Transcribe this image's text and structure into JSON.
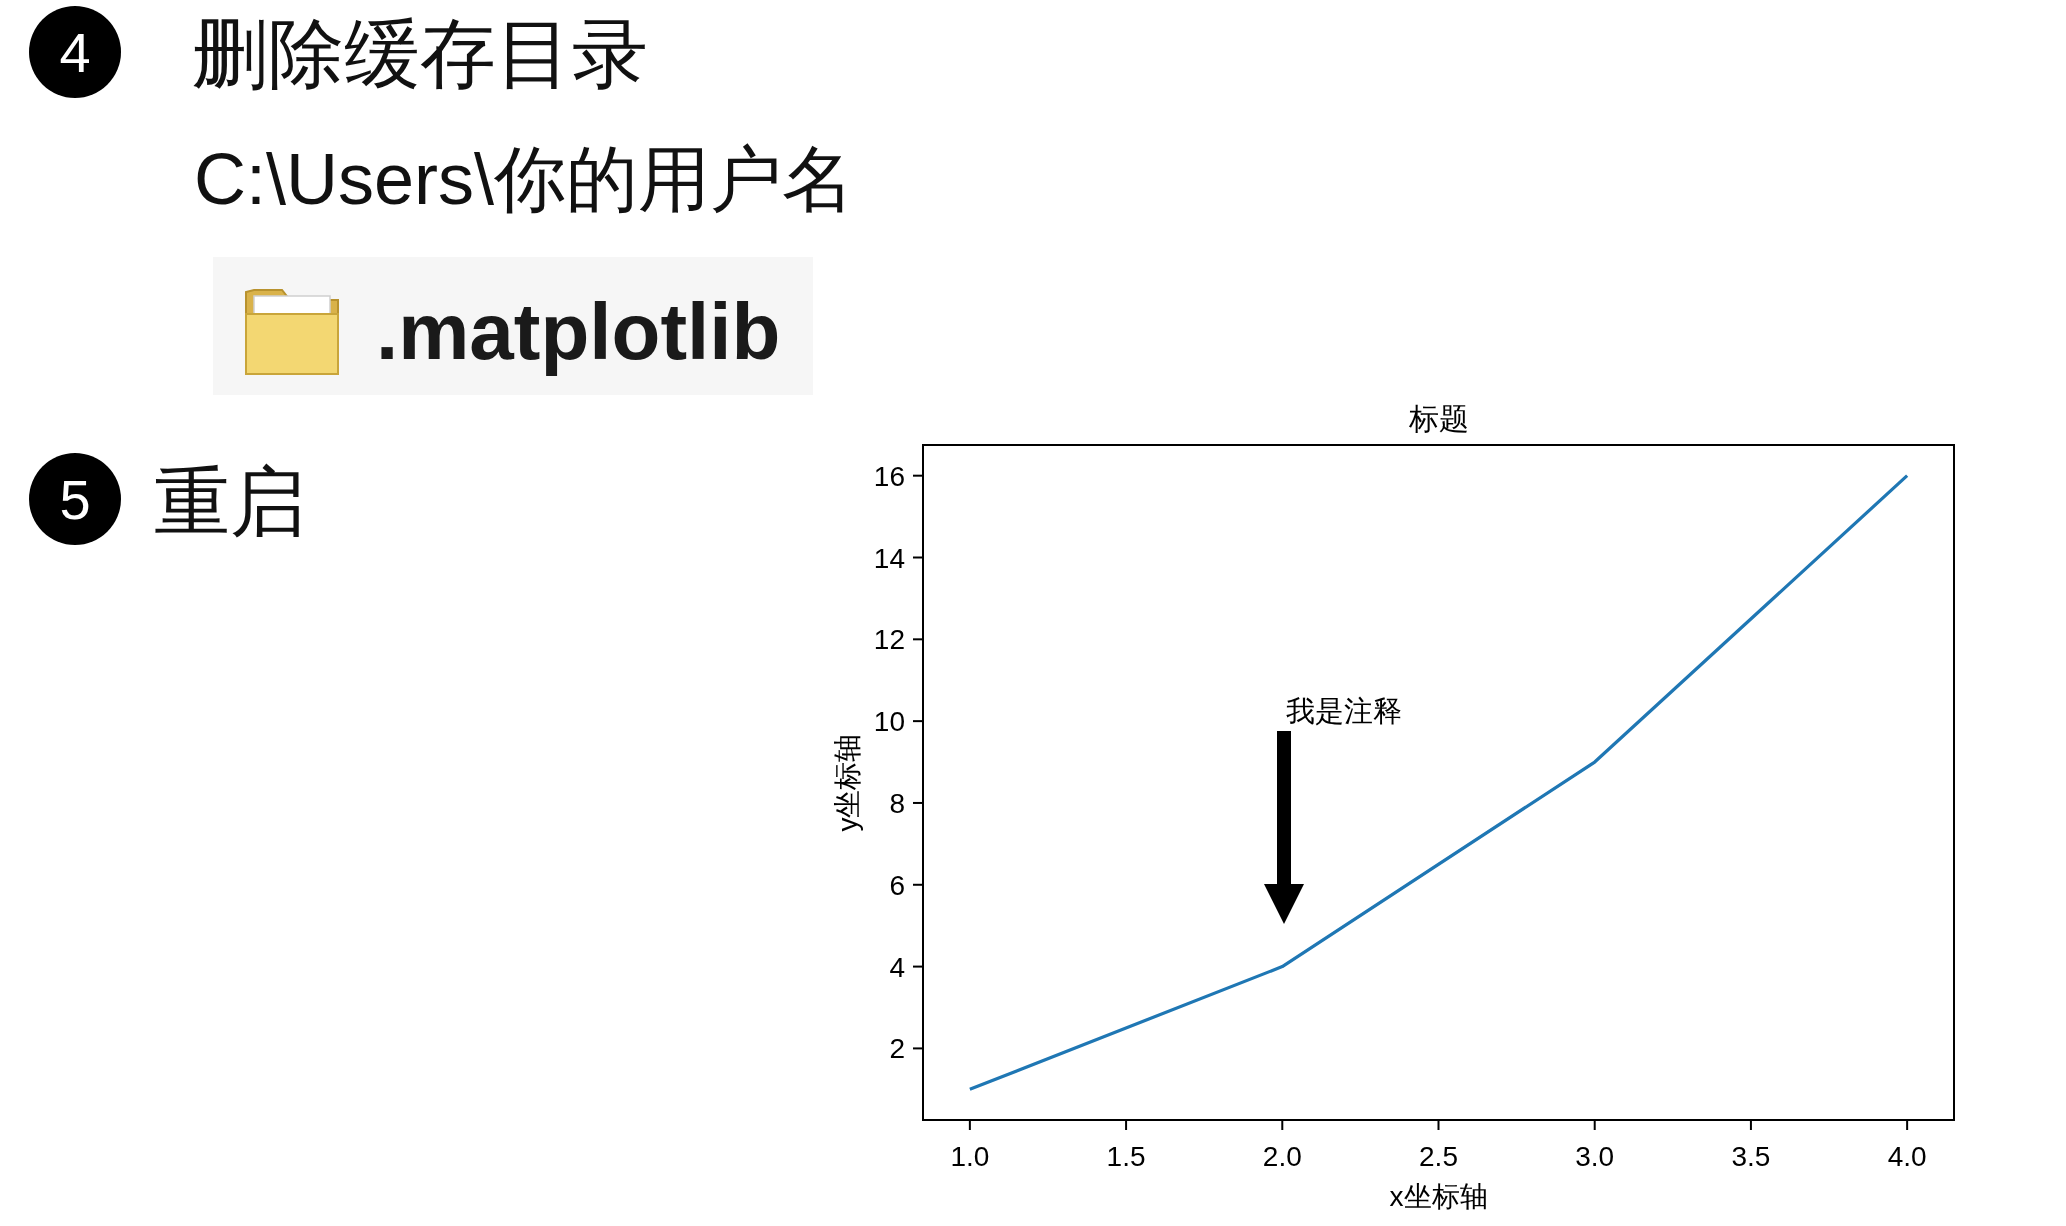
{
  "chart_data": {
    "type": "line",
    "title": "标题",
    "xlabel": "x坐标轴",
    "ylabel": "y坐标轴",
    "x": [
      1,
      2,
      3,
      4
    ],
    "series": [
      {
        "color": "#1f77b4",
        "values": [
          1,
          4,
          9,
          16
        ]
      }
    ],
    "xlim": [
      0.85,
      4.15
    ],
    "ylim": [
      0.25,
      16.75
    ],
    "xticks": [
      {
        "value": 1,
        "label": "1.0"
      },
      {
        "value": 1.5,
        "label": "1.5"
      },
      {
        "value": 2,
        "label": "2.0"
      },
      {
        "value": 2.5,
        "label": "2.5"
      },
      {
        "value": 3,
        "label": "3.0"
      },
      {
        "value": 3.5,
        "label": "3.5"
      },
      {
        "value": 4,
        "label": "4.0"
      }
    ],
    "yticks": [
      2,
      4,
      6,
      8,
      10,
      12,
      14,
      16
    ],
    "annotations": [
      "4",
      "删除缓存目录",
      "C:\\Users\\你的用户名",
      ".matplotlib",
      "5",
      "重启",
      "我是注释"
    ]
  }
}
